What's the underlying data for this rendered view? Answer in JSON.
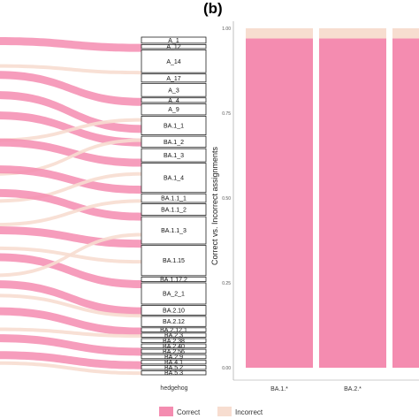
{
  "panel_b_tag": "(b)",
  "colors": {
    "correct": "#f48cb0",
    "incorrect": "#f7ddd0",
    "node_stroke": "#222222"
  },
  "alluvial": {
    "axis_label": "hedgehog",
    "nodes": [
      {
        "label": "A_1",
        "size": 1.2
      },
      {
        "label": "A_12",
        "size": 0.8
      },
      {
        "label": "A_14",
        "size": 4.5
      },
      {
        "label": "A_17",
        "size": 1.6
      },
      {
        "label": "A_3",
        "size": 2.6
      },
      {
        "label": "A_4",
        "size": 0.9
      },
      {
        "label": "A_9",
        "size": 2.2
      },
      {
        "label": "BA.1_1",
        "size": 3.7
      },
      {
        "label": "BA.1_2",
        "size": 2.2
      },
      {
        "label": "BA.1_3",
        "size": 2.6
      },
      {
        "label": "BA.1_4",
        "size": 5.8
      },
      {
        "label": "BA.1.1_1",
        "size": 1.7
      },
      {
        "label": "BA.1.1_2",
        "size": 2.3
      },
      {
        "label": "BA.1.1_3",
        "size": 5.4
      },
      {
        "label": "BA.1.15",
        "size": 6.0
      },
      {
        "label": "BA.1.17.2",
        "size": 0.9
      },
      {
        "label": "BA_2_1",
        "size": 4.2
      },
      {
        "label": "BA.2.10",
        "size": 1.9
      },
      {
        "label": "BA.2.12",
        "size": 2.0
      },
      {
        "label": "BA.2.12.1",
        "size": 0.8
      },
      {
        "label": "BA.2.3",
        "size": 0.8
      },
      {
        "label": "BA.2.38",
        "size": 0.8
      },
      {
        "label": "BA.2.40",
        "size": 0.8
      },
      {
        "label": "BA.2.56",
        "size": 0.8
      },
      {
        "label": "BA.2.9",
        "size": 0.8
      },
      {
        "label": "BA.4.1",
        "size": 0.8
      },
      {
        "label": "BA.5.2",
        "size": 0.8
      },
      {
        "label": "BA.5.3",
        "size": 0.8
      }
    ],
    "flows": [
      {
        "status": "correct",
        "from": 0.0,
        "to": 0.02
      },
      {
        "status": "incorrect",
        "from": 0.08,
        "to": 0.1
      },
      {
        "status": "correct",
        "from": 0.1,
        "to": 0.18
      },
      {
        "status": "correct",
        "from": 0.16,
        "to": 0.26
      },
      {
        "status": "correct",
        "from": 0.22,
        "to": 0.3
      },
      {
        "status": "incorrect",
        "from": 0.3,
        "to": 0.24
      },
      {
        "status": "correct",
        "from": 0.3,
        "to": 0.36
      },
      {
        "status": "incorrect",
        "from": 0.4,
        "to": 0.3
      },
      {
        "status": "correct",
        "from": 0.38,
        "to": 0.44
      },
      {
        "status": "incorrect",
        "from": 0.48,
        "to": 0.4
      },
      {
        "status": "correct",
        "from": 0.45,
        "to": 0.52
      },
      {
        "status": "incorrect",
        "from": 0.55,
        "to": 0.48
      },
      {
        "status": "correct",
        "from": 0.56,
        "to": 0.6
      },
      {
        "status": "incorrect",
        "from": 0.62,
        "to": 0.66
      },
      {
        "status": "correct",
        "from": 0.64,
        "to": 0.72
      },
      {
        "status": "incorrect",
        "from": 0.7,
        "to": 0.58
      },
      {
        "status": "correct",
        "from": 0.72,
        "to": 0.8
      },
      {
        "status": "incorrect",
        "from": 0.76,
        "to": 0.82
      },
      {
        "status": "correct",
        "from": 0.8,
        "to": 0.86
      },
      {
        "status": "incorrect",
        "from": 0.86,
        "to": 0.88
      },
      {
        "status": "correct",
        "from": 0.88,
        "to": 0.92
      },
      {
        "status": "correct",
        "from": 0.93,
        "to": 0.96
      },
      {
        "status": "incorrect",
        "from": 0.96,
        "to": 0.99
      }
    ]
  },
  "chart_data": {
    "type": "bar",
    "stacked": true,
    "ylabel": "Correct vs. Incorrect assignments",
    "yticks": [
      "0.00",
      "0.25",
      "0.50",
      "0.75",
      "1.00"
    ],
    "ylim": [
      0,
      1
    ],
    "categories": [
      "BA.1.*",
      "BA.2.*"
    ],
    "series": [
      {
        "name": "Correct",
        "values": [
          0.97,
          0.97
        ]
      },
      {
        "name": "Incorrect",
        "values": [
          0.03,
          0.03
        ]
      }
    ],
    "legend_position": "bottom"
  },
  "legend": [
    {
      "label": "Correct",
      "status": "correct"
    },
    {
      "label": "Incorrect",
      "status": "incorrect"
    }
  ]
}
